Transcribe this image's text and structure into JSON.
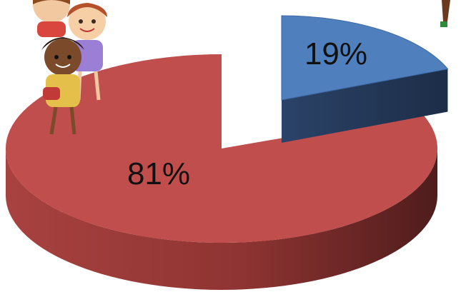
{
  "chart_data": {
    "type": "pie",
    "style": "3d",
    "slices": [
      {
        "label": "81%",
        "value": 81,
        "color": "#bf4e4c"
      },
      {
        "label": "19%",
        "value": 19,
        "color": "#4f7fbd"
      }
    ],
    "title": "",
    "legend": "none"
  },
  "decoration": {
    "icons": [
      "cartoon-kids-icon",
      "cartoon-child-leg-icon"
    ]
  }
}
